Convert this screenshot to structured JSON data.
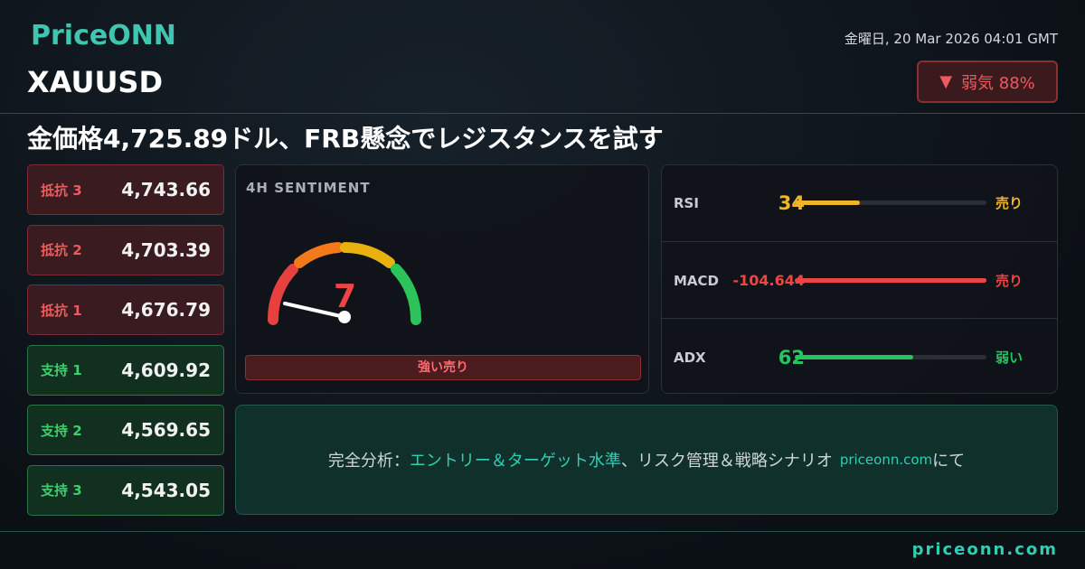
{
  "brand": "PriceONN",
  "date": "金曜日, 20 Mar 2026 04:01 GMT",
  "symbol": "XAUUSD",
  "bias": {
    "arrow": "▼",
    "label": "弱気 88%"
  },
  "headline": "金価格4,725.89ドル、FRB懸念でレジスタンスを試す",
  "levels": [
    {
      "label": "抵抗 3",
      "value": "4,743.66",
      "kind": "resistance"
    },
    {
      "label": "抵抗 2",
      "value": "4,703.39",
      "kind": "resistance"
    },
    {
      "label": "抵抗 1",
      "value": "4,676.79",
      "kind": "resistance"
    },
    {
      "label": "支持 1",
      "value": "4,609.92",
      "kind": "support"
    },
    {
      "label": "支持 2",
      "value": "4,569.65",
      "kind": "support"
    },
    {
      "label": "支持 3",
      "value": "4,543.05",
      "kind": "support"
    }
  ],
  "sentiment": {
    "title": "4H SENTIMENT",
    "value": "7",
    "label": "強い売り"
  },
  "indicators": [
    {
      "name": "RSI",
      "value": "34",
      "signal": "売り",
      "color": "#f0b429"
    },
    {
      "name": "MACD",
      "value": "-104.644",
      "signal": "売り",
      "color": "#ef4444"
    },
    {
      "name": "ADX",
      "value": "62",
      "signal": "弱い",
      "color": "#22c55e"
    }
  ],
  "cta": {
    "prefix": "完全分析：",
    "highlight": "エントリー＆ターゲット水準",
    "middle": "、リスク管理＆戦略シナリオ",
    "site": "priceonn.com",
    "suffix": "にて"
  },
  "footer": "priceonn.com"
}
